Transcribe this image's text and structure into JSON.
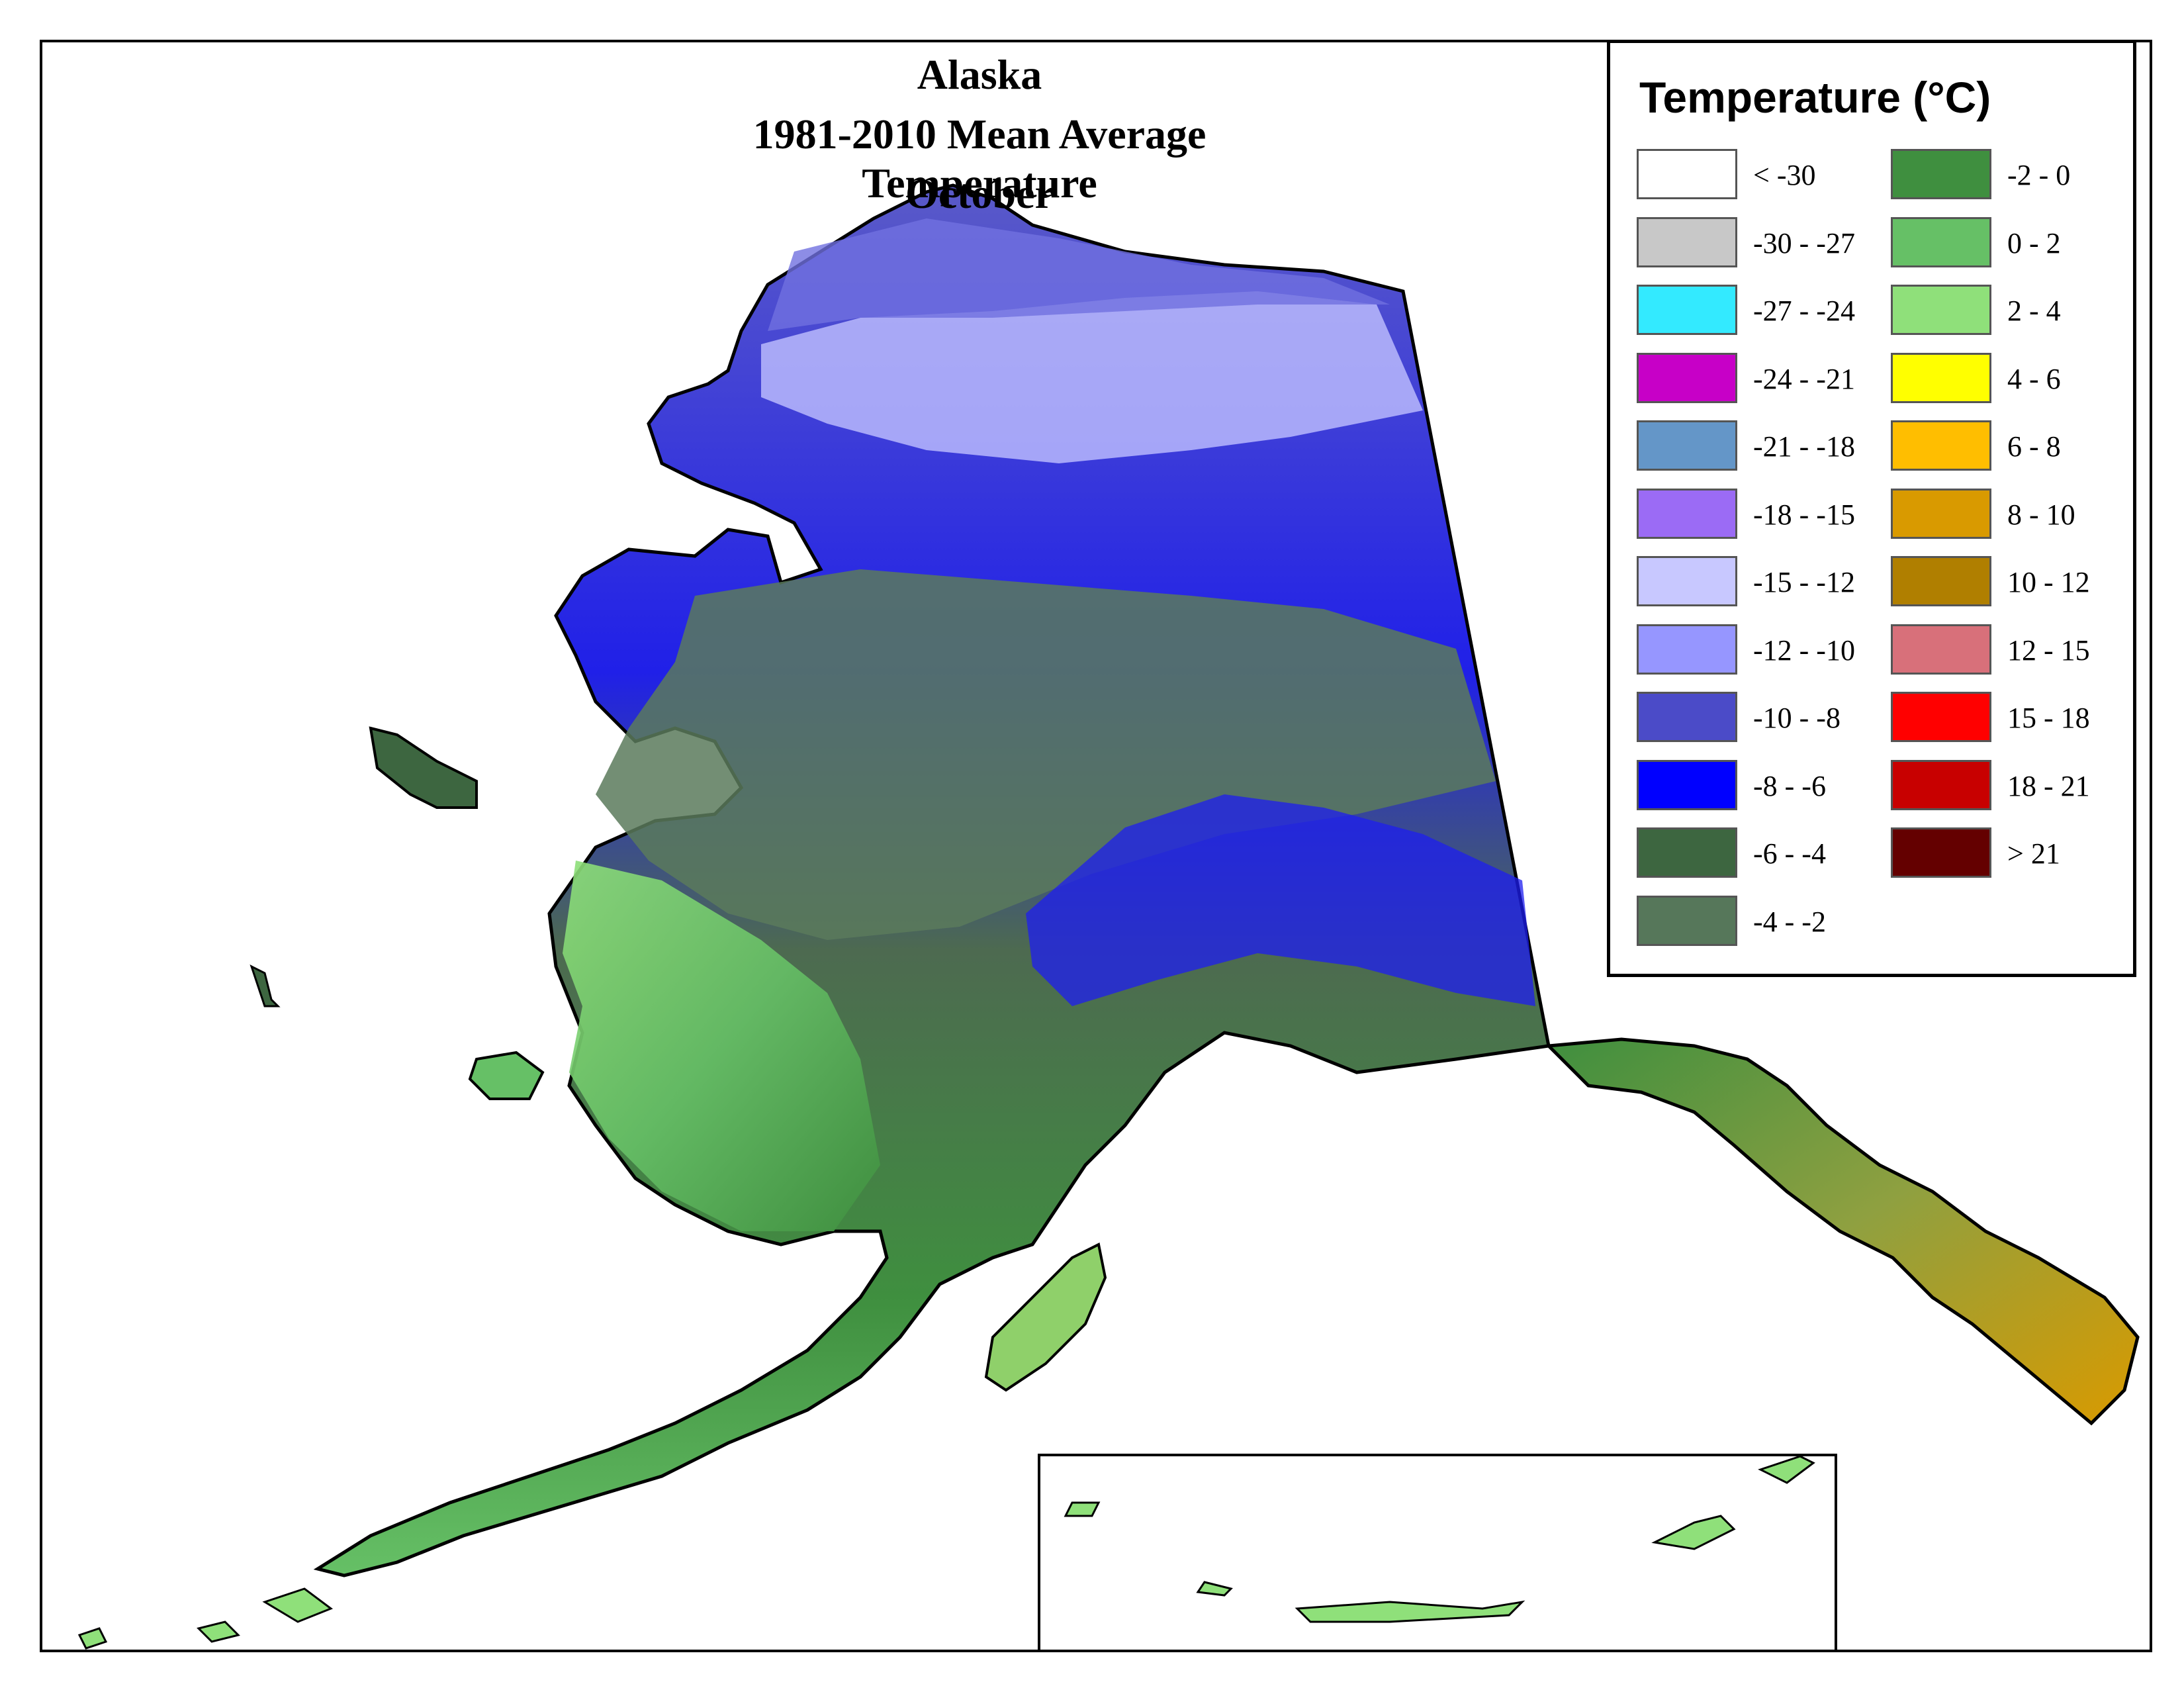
{
  "map": {
    "title_lines": [
      "Alaska",
      "1981-2010 Mean Average Temperature",
      "October"
    ],
    "region": "Alaska"
  },
  "legend": {
    "title": "Temperature (°C)",
    "items": [
      {
        "label": "< -30",
        "color": "#ffffff"
      },
      {
        "label": "-30 - -27",
        "color": "#c8c8c8"
      },
      {
        "label": "-27 - -24",
        "color": "#33eaff"
      },
      {
        "label": "-24 - -21",
        "color": "#c700c7"
      },
      {
        "label": "-21 - -18",
        "color": "#6496c8"
      },
      {
        "label": "-18 - -15",
        "color": "#9b6bf5"
      },
      {
        "label": "-15 - -12",
        "color": "#c8c8ff"
      },
      {
        "label": "-12 - -10",
        "color": "#9696ff"
      },
      {
        "label": "-10 - -8",
        "color": "#4b4bc8"
      },
      {
        "label": "-8 - -6",
        "color": "#0000ff"
      },
      {
        "label": "-6 - -4",
        "color": "#3d6640"
      },
      {
        "label": "-4 - -2",
        "color": "#56775a"
      },
      {
        "label": "-2 - 0",
        "color": "#3f8f3f"
      },
      {
        "label": "0 - 2",
        "color": "#66c066"
      },
      {
        "label": "2 - 4",
        "color": "#8fe07a"
      },
      {
        "label": "4 - 6",
        "color": "#ffff00"
      },
      {
        "label": "6 - 8",
        "color": "#ffbe00"
      },
      {
        "label": "8 - 10",
        "color": "#d99a00"
      },
      {
        "label": "10 - 12",
        "color": "#b07f00"
      },
      {
        "label": "12 - 15",
        "color": "#d8707a"
      },
      {
        "label": "15 - 18",
        "color": "#ff0000"
      },
      {
        "label": "18 - 21",
        "color": "#c80000"
      },
      {
        "label": "> 21",
        "color": "#640000"
      }
    ]
  }
}
